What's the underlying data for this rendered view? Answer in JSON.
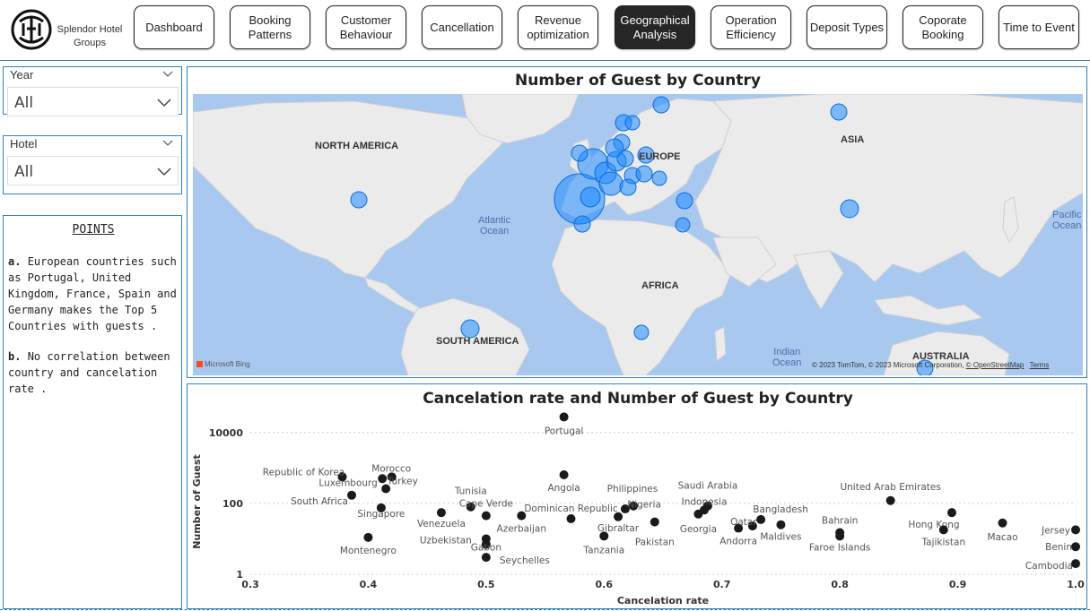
{
  "brand": {
    "name_line1": "Splendor Hotel",
    "name_line2": "Groups",
    "logo_text": "SHG"
  },
  "nav": [
    {
      "label_line1": "Dashboard",
      "label_line2": "",
      "active": false
    },
    {
      "label_line1": "Booking",
      "label_line2": "Patterns",
      "active": false
    },
    {
      "label_line1": "Customer",
      "label_line2": "Behaviour",
      "active": false
    },
    {
      "label_line1": "Cancellation",
      "label_line2": "",
      "active": false
    },
    {
      "label_line1": "Revenue",
      "label_line2": "optimization",
      "active": false
    },
    {
      "label_line1": "Geographical",
      "label_line2": "Analysis",
      "active": true
    },
    {
      "label_line1": "Operation",
      "label_line2": "Efficiency",
      "active": false
    },
    {
      "label_line1": "Deposit Types",
      "label_line2": "",
      "active": false
    },
    {
      "label_line1": "Coporate",
      "label_line2": "Booking",
      "active": false
    },
    {
      "label_line1": "Time to Event",
      "label_line2": "",
      "active": false
    }
  ],
  "filters": {
    "year": {
      "title": "Year",
      "value": "All"
    },
    "hotel": {
      "title": "Hotel",
      "value": "All"
    }
  },
  "points": {
    "heading": "POINTS",
    "a_marker": "a.",
    "a_text": "European countries such as Portugal, United Kingdom, France, Spain and Germany makes the Top 5 Countries with guests .",
    "b_marker": "b.",
    "b_text": "No correlation between country and cancelation rate ."
  },
  "map": {
    "title": "Number of Guest by Country",
    "labels": {
      "north_america": "NORTH AMERICA",
      "europe": "EUROPE",
      "asia": "ASIA",
      "africa": "AFRICA",
      "south_america": "SOUTH AMERICA",
      "australia": "AUSTRALIA"
    },
    "oceans": {
      "atlantic_1": "Atlantic",
      "atlantic_2": "Ocean",
      "pacific_1": "Pacific",
      "pacific_2": "Ocean",
      "indian_1": "Indian",
      "indian_2": "Ocean"
    },
    "bing": "Microsoft Bing",
    "copyright": "© 2023 TomTom, © 2023 Microsoft Corporation,",
    "osm": "© OpenStreetMap",
    "terms": "Terms",
    "bubble_color": "#1f8bff",
    "land_color": "#ebebeb",
    "water_color": "#a8c8f0"
  },
  "chart_data": {
    "type": "scatter",
    "title": "Cancelation rate and Number of Guest by Country",
    "xlabel": "Cancelation rate",
    "ylabel": "Number of Guest",
    "x_ticks": [
      "0.3",
      "0.4",
      "0.5",
      "0.6",
      "0.7",
      "0.8",
      "0.9",
      "1.0"
    ],
    "y_ticks": [
      "1",
      "100",
      "10000"
    ],
    "xlim": [
      0.3,
      1.0
    ],
    "ylim": [
      1,
      40000
    ],
    "y_scale": "log",
    "grid": true,
    "point_color": "#1a1a1a",
    "points": [
      {
        "label": "Portugal",
        "x": 0.566,
        "y": 27500
      },
      {
        "label": "Republic of Korea",
        "x": 0.378,
        "y": 560
      },
      {
        "label": "Morocco",
        "x": 0.412,
        "y": 500
      },
      {
        "label": "Turkey",
        "x": 0.42,
        "y": 560
      },
      {
        "label": "Luxembourg",
        "x": 0.415,
        "y": 260
      },
      {
        "label": "South Africa",
        "x": 0.386,
        "y": 170
      },
      {
        "label": "Singapore",
        "x": 0.411,
        "y": 75
      },
      {
        "label": "Montenegro",
        "x": 0.4,
        "y": 11
      },
      {
        "label": "Venezuela",
        "x": 0.462,
        "y": 55
      },
      {
        "label": "Tunisia",
        "x": 0.487,
        "y": 80
      },
      {
        "label": "Cape Verde",
        "x": 0.5,
        "y": 45
      },
      {
        "label": "Uzbekistan",
        "x": 0.5,
        "y": 10
      },
      {
        "label": "Gabon",
        "x": 0.5,
        "y": 7
      },
      {
        "label": "Seychelles",
        "x": 0.5,
        "y": 3
      },
      {
        "label": "Azerbaijan",
        "x": 0.53,
        "y": 45
      },
      {
        "label": "Angola",
        "x": 0.566,
        "y": 640
      },
      {
        "label": "Dominican Republic",
        "x": 0.572,
        "y": 37
      },
      {
        "label": "Tanzania",
        "x": 0.6,
        "y": 12
      },
      {
        "label": "Gibraltar",
        "x": 0.612,
        "y": 42
      },
      {
        "label": "Philippines",
        "x": 0.618,
        "y": 70
      },
      {
        "label": "Nigeria",
        "x": 0.625,
        "y": 85
      },
      {
        "label": "Pakistan",
        "x": 0.643,
        "y": 30
      },
      {
        "label": "Saudi Arabia",
        "x": 0.688,
        "y": 85
      },
      {
        "label": "Indonesia",
        "x": 0.685,
        "y": 65
      },
      {
        "label": "Georgia",
        "x": 0.68,
        "y": 50
      },
      {
        "label": "Andorra",
        "x": 0.714,
        "y": 20
      },
      {
        "label": "Qatar",
        "x": 0.726,
        "y": 23
      },
      {
        "label": "Bangladesh",
        "x": 0.733,
        "y": 35
      },
      {
        "label": "Maldives",
        "x": 0.75,
        "y": 25
      },
      {
        "label": "Bahrain",
        "x": 0.8,
        "y": 15
      },
      {
        "label": "Faroe Islands",
        "x": 0.8,
        "y": 12
      },
      {
        "label": "United Arab Emirates",
        "x": 0.843,
        "y": 120
      },
      {
        "label": "Hong Kong",
        "x": 0.895,
        "y": 55
      },
      {
        "label": "Tajikistan",
        "x": 0.888,
        "y": 18
      },
      {
        "label": "Macao",
        "x": 0.938,
        "y": 28
      },
      {
        "label": "Jersey",
        "x": 1.0,
        "y": 18
      },
      {
        "label": "Benin",
        "x": 1.0,
        "y": 6
      },
      {
        "label": "Cambodia",
        "x": 1.0,
        "y": 2
      }
    ]
  }
}
